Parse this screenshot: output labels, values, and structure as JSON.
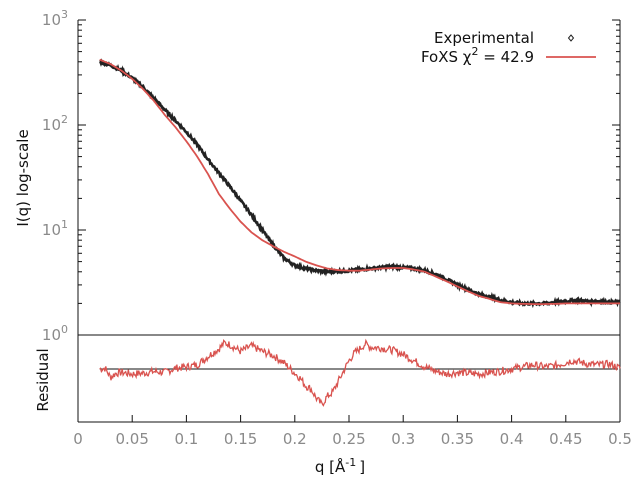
{
  "chart_data": [
    {
      "type": "scatter",
      "panel": "main",
      "ylabel": "I(q) log-scale",
      "yscale": "log",
      "ylim": [
        1,
        1000
      ],
      "xlim": [
        0,
        0.5
      ],
      "y_tick_base": "10",
      "y_ticks": [
        {
          "value": 1,
          "exp": "0"
        },
        {
          "value": 10,
          "exp": "1"
        },
        {
          "value": 100,
          "exp": "2"
        },
        {
          "value": 1000,
          "exp": "3"
        }
      ],
      "legend": {
        "placement": "top-right",
        "experimental_label": "Experimental",
        "fit_label_prefix": "FoXS χ",
        "fit_label_sup": "2",
        "fit_label_suffix": " = 42.9"
      },
      "series": [
        {
          "name": "Experimental",
          "color": "#222222",
          "x": [
            0.02,
            0.03,
            0.04,
            0.05,
            0.06,
            0.07,
            0.08,
            0.09,
            0.1,
            0.11,
            0.12,
            0.13,
            0.14,
            0.15,
            0.16,
            0.17,
            0.18,
            0.19,
            0.2,
            0.21,
            0.22,
            0.23,
            0.24,
            0.25,
            0.26,
            0.27,
            0.28,
            0.29,
            0.3,
            0.31,
            0.32,
            0.33,
            0.34,
            0.35,
            0.36,
            0.37,
            0.38,
            0.39,
            0.4,
            0.41,
            0.42,
            0.43,
            0.44,
            0.45,
            0.46,
            0.47,
            0.48,
            0.49,
            0.5
          ],
          "y": [
            400,
            370,
            330,
            280,
            230,
            180,
            140,
            110,
            86,
            65,
            47,
            35,
            26,
            19,
            14,
            10,
            7.2,
            5.4,
            4.6,
            4.3,
            4.1,
            4.0,
            4.05,
            4.1,
            4.2,
            4.3,
            4.4,
            4.5,
            4.4,
            4.3,
            4.1,
            3.8,
            3.4,
            3.0,
            2.7,
            2.45,
            2.3,
            2.15,
            2.05,
            2.0,
            2.0,
            2.0,
            2.05,
            2.1,
            2.15,
            2.1,
            2.1,
            2.05,
            2.05
          ]
        },
        {
          "name": "FoXS χ2 = 42.9",
          "color": "#d9534f",
          "x": [
            0.02,
            0.03,
            0.04,
            0.05,
            0.06,
            0.07,
            0.08,
            0.09,
            0.1,
            0.11,
            0.12,
            0.13,
            0.14,
            0.15,
            0.16,
            0.17,
            0.18,
            0.19,
            0.2,
            0.21,
            0.22,
            0.23,
            0.24,
            0.25,
            0.26,
            0.27,
            0.28,
            0.29,
            0.3,
            0.31,
            0.32,
            0.33,
            0.34,
            0.35,
            0.36,
            0.37,
            0.38,
            0.39,
            0.4,
            0.41,
            0.42,
            0.43,
            0.44,
            0.45,
            0.46,
            0.47,
            0.48,
            0.49,
            0.5
          ],
          "y": [
            420,
            380,
            330,
            275,
            220,
            170,
            125,
            95,
            70,
            50,
            34,
            22,
            16,
            12,
            9.5,
            8.0,
            7.0,
            6.2,
            5.6,
            5.0,
            4.6,
            4.3,
            4.15,
            4.1,
            4.1,
            4.2,
            4.3,
            4.35,
            4.35,
            4.2,
            4.0,
            3.6,
            3.25,
            2.9,
            2.6,
            2.35,
            2.2,
            2.05,
            2.0,
            1.98,
            1.97,
            1.97,
            1.98,
            2.0,
            2.0,
            2.0,
            2.0,
            2.0,
            2.0
          ]
        }
      ]
    },
    {
      "type": "line",
      "panel": "residual",
      "ylabel": "Residual",
      "xlabel_prefix": "q [Å",
      "xlabel_sup": "-1",
      "xlabel_suffix": "]",
      "xlim": [
        0,
        0.5
      ],
      "ylim": [
        -1,
        1
      ],
      "x_ticks": [
        0,
        0.05,
        0.1,
        0.15,
        0.2,
        0.25,
        0.3,
        0.35,
        0.4,
        0.45,
        0.5
      ],
      "x_tick_labels": [
        "0",
        "0.05",
        "0.1",
        "0.15",
        "0.2",
        "0.25",
        "0.3",
        "0.35",
        "0.4",
        "0.45",
        "0.5"
      ],
      "zero_line_color": "#111111",
      "series": [
        {
          "name": "Residual",
          "color": "#d9534f",
          "x": [
            0.02,
            0.025,
            0.03,
            0.035,
            0.04,
            0.05,
            0.06,
            0.07,
            0.08,
            0.09,
            0.1,
            0.11,
            0.12,
            0.125,
            0.13,
            0.135,
            0.14,
            0.15,
            0.16,
            0.17,
            0.18,
            0.19,
            0.2,
            0.205,
            0.21,
            0.215,
            0.22,
            0.225,
            0.23,
            0.235,
            0.24,
            0.245,
            0.25,
            0.255,
            0.26,
            0.265,
            0.27,
            0.28,
            0.29,
            0.3,
            0.31,
            0.32,
            0.33,
            0.34,
            0.35,
            0.36,
            0.37,
            0.38,
            0.39,
            0.4,
            0.41,
            0.42,
            0.43,
            0.44,
            0.45,
            0.455,
            0.46,
            0.47,
            0.48,
            0.49,
            0.5
          ],
          "y": [
            0,
            0.02,
            -0.2,
            -0.1,
            -0.08,
            -0.12,
            -0.1,
            -0.06,
            -0.08,
            0.02,
            0.05,
            0.1,
            0.3,
            0.4,
            0.48,
            0.62,
            0.58,
            0.42,
            0.55,
            0.42,
            0.32,
            0.15,
            -0.1,
            -0.22,
            -0.4,
            -0.48,
            -0.7,
            -0.85,
            -0.65,
            -0.55,
            -0.3,
            -0.05,
            0.2,
            0.38,
            0.48,
            0.6,
            0.52,
            0.5,
            0.45,
            0.35,
            0.2,
            0.05,
            -0.05,
            -0.12,
            -0.08,
            -0.1,
            -0.12,
            -0.08,
            -0.05,
            0,
            0.05,
            0.1,
            0.05,
            0.08,
            0.15,
            0.2,
            0.18,
            0.12,
            0.1,
            0.12,
            0.02
          ]
        }
      ]
    }
  ]
}
